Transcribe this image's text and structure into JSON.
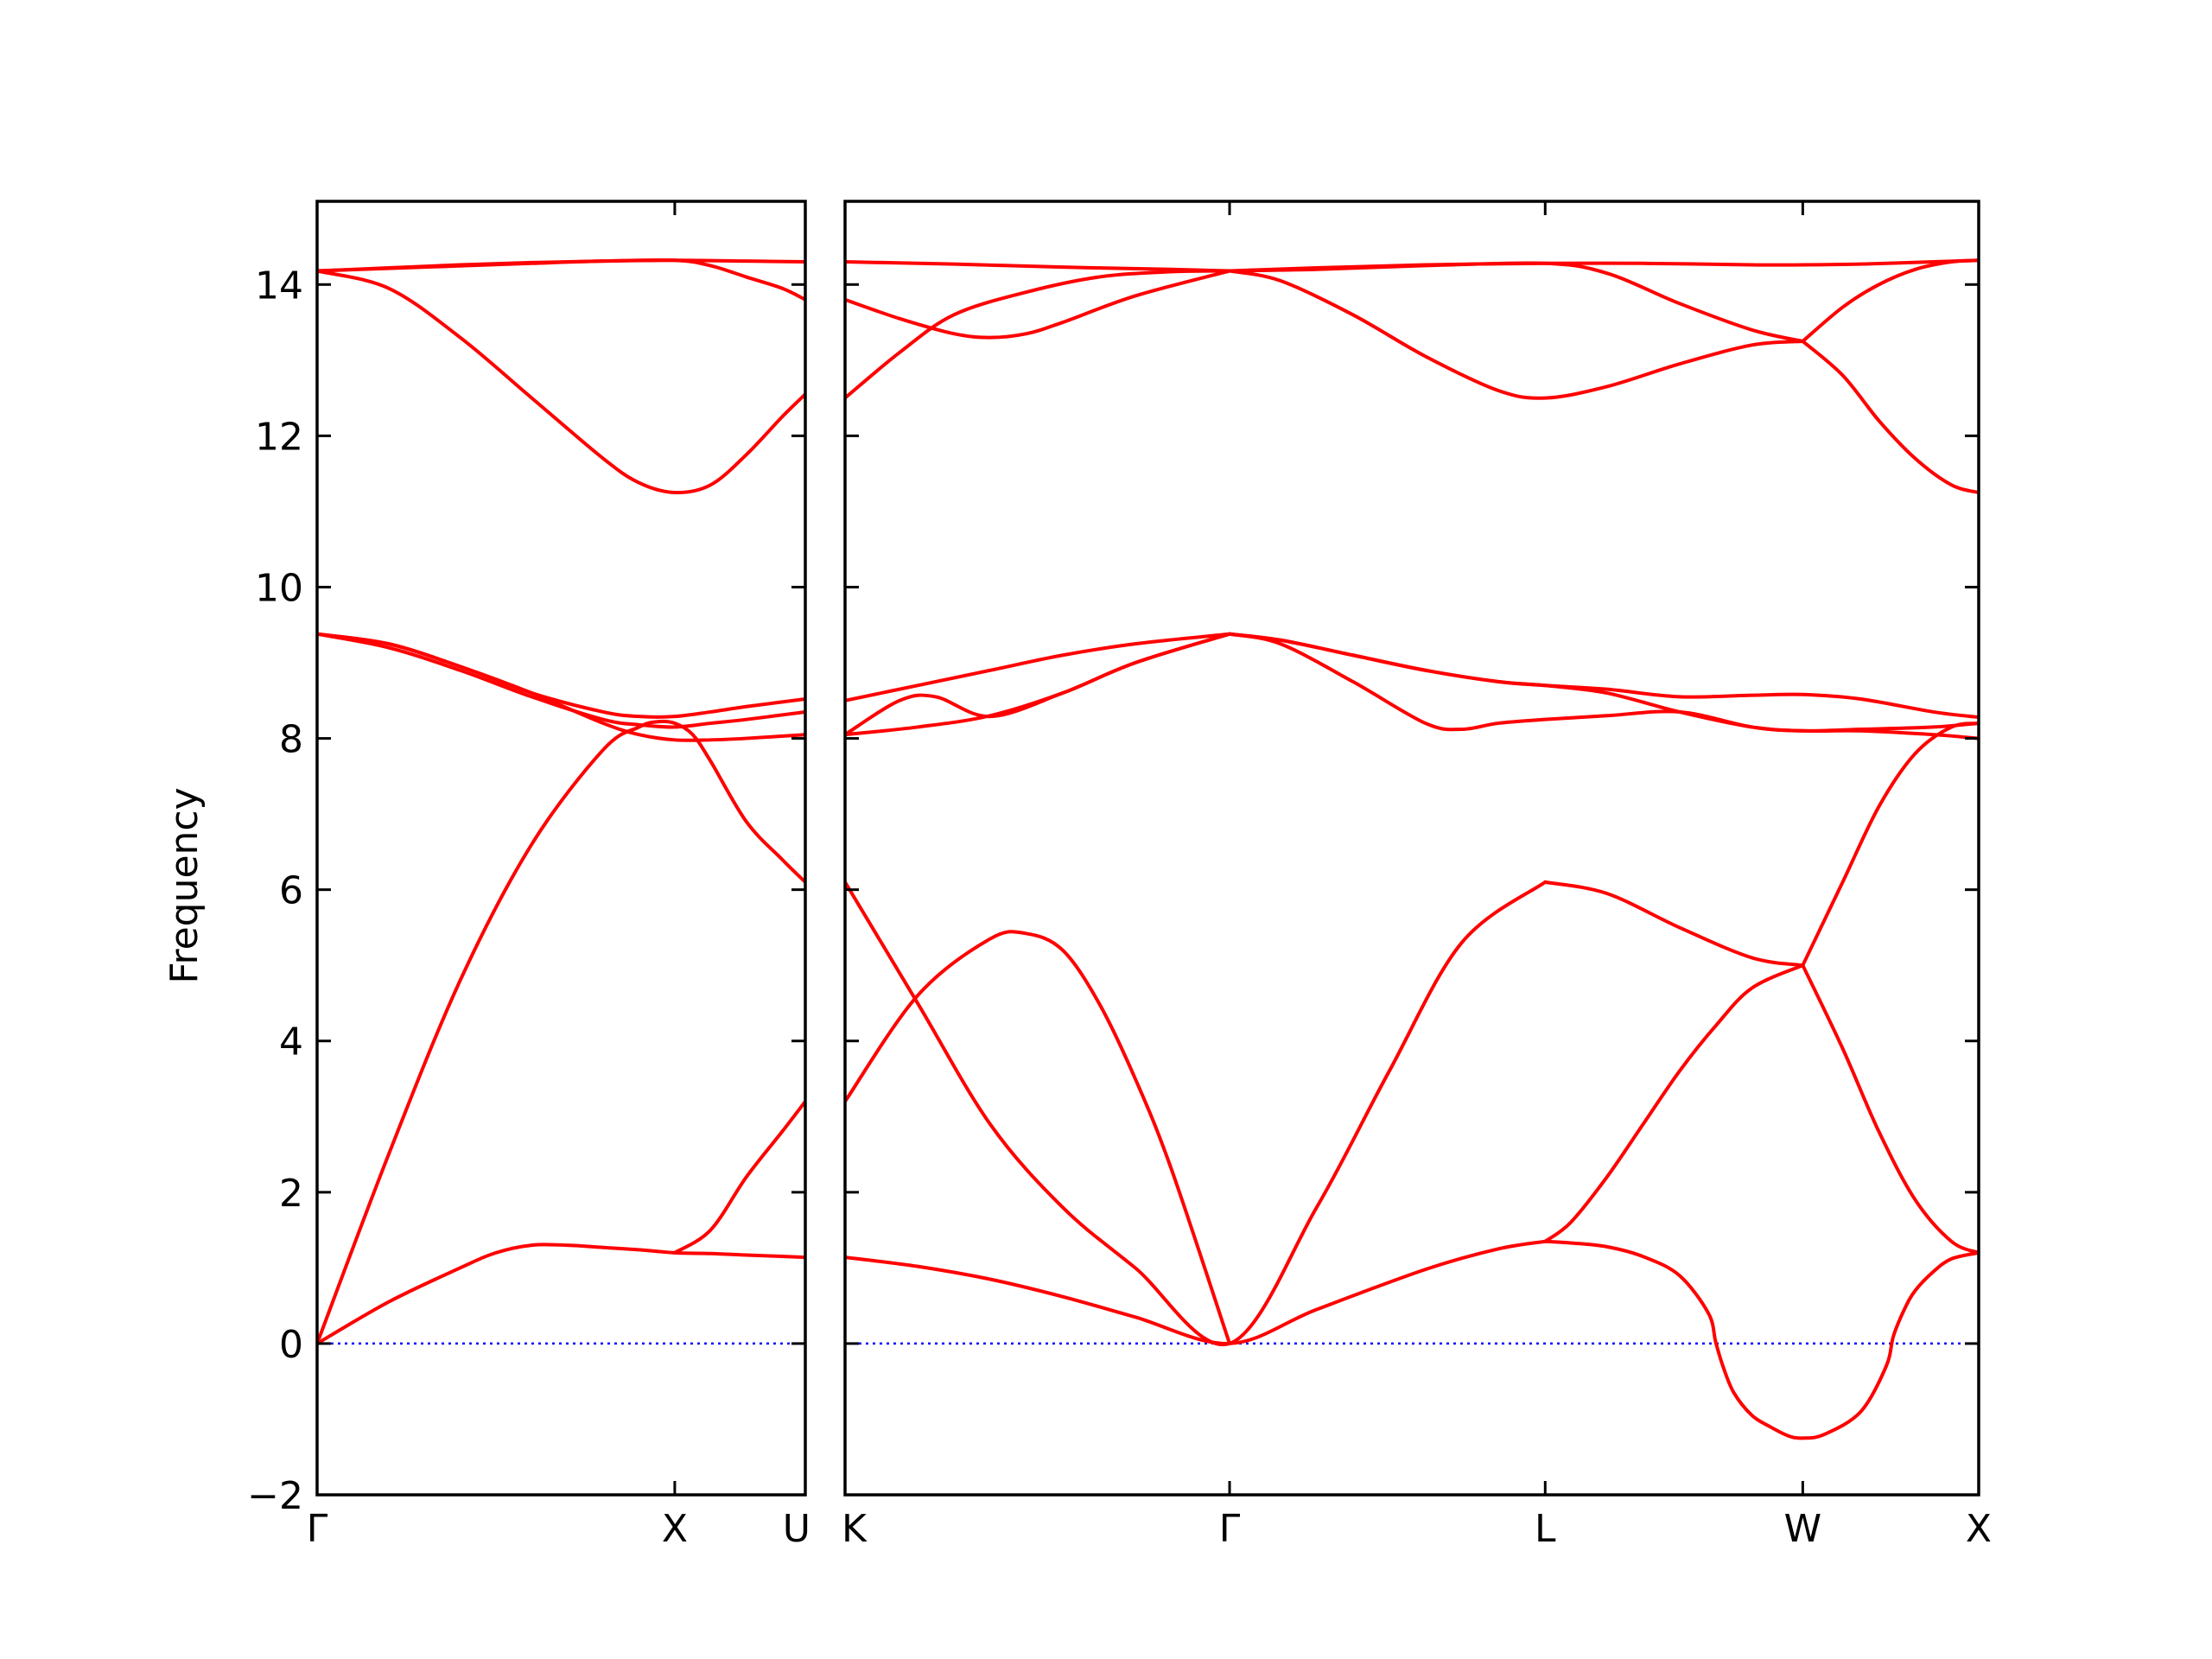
{
  "chart_data": {
    "type": "line",
    "title": "",
    "ylabel": "Frequency",
    "xlabel": "",
    "ylim": [
      -2,
      15.1
    ],
    "yticks": [
      -2,
      0,
      2,
      4,
      6,
      8,
      10,
      12,
      14
    ],
    "grid": false,
    "legend": "none",
    "colors": {
      "bands": "#ff0000",
      "zero_line": "#0000ff"
    },
    "panels": [
      {
        "x_range": [
          0,
          1.365
        ],
        "ticks": [
          {
            "x": 0,
            "label": "Γ"
          },
          {
            "x": 1.0,
            "label": "X"
          },
          {
            "x": 1.365,
            "label": "U"
          }
        ],
        "bands": [
          {
            "x": [
              0,
              0.2,
              0.4,
              0.5,
              0.6,
              0.7,
              0.8,
              0.9,
              1.0,
              1.1,
              1.2,
              1.365
            ],
            "y": [
              0,
              0.55,
              1.0,
              1.2,
              1.3,
              1.3,
              1.27,
              1.24,
              1.2,
              1.19,
              1.17,
              1.14
            ]
          },
          {
            "x": [
              0,
              0.2,
              0.4,
              0.6,
              0.8,
              0.9,
              0.95,
              1.0,
              1.05,
              1.1,
              1.2,
              1.3,
              1.365
            ],
            "y": [
              0,
              2.5,
              4.8,
              6.6,
              7.85,
              8.15,
              8.22,
              8.2,
              8.05,
              7.7,
              6.9,
              6.4,
              6.1
            ]
          },
          {
            "x": [
              1.0,
              1.1,
              1.2,
              1.3,
              1.365
            ],
            "y": [
              1.2,
              1.5,
              2.2,
              2.8,
              3.2
            ]
          },
          {
            "x": [
              0,
              0.2,
              0.4,
              0.6,
              0.8,
              0.9,
              1.0,
              1.1,
              1.2,
              1.365
            ],
            "y": [
              9.38,
              9.25,
              8.95,
              8.6,
              8.2,
              8.05,
              7.98,
              7.98,
              8.0,
              8.05
            ]
          },
          {
            "x": [
              0,
              0.2,
              0.4,
              0.6,
              0.8,
              0.9,
              1.0,
              1.1,
              1.2,
              1.365
            ],
            "y": [
              9.38,
              9.2,
              8.9,
              8.55,
              8.25,
              8.18,
              8.15,
              8.2,
              8.25,
              8.35
            ]
          },
          {
            "x": [
              0,
              0.2,
              0.4,
              0.6,
              0.8,
              0.9,
              1.0,
              1.1,
              1.2,
              1.365
            ],
            "y": [
              9.38,
              9.25,
              8.95,
              8.6,
              8.35,
              8.29,
              8.29,
              8.35,
              8.42,
              8.52
            ]
          },
          {
            "x": [
              0,
              0.2,
              0.4,
              0.6,
              0.8,
              0.9,
              1.0,
              1.1,
              1.2,
              1.3,
              1.365
            ],
            "y": [
              14.18,
              13.95,
              13.3,
              12.5,
              11.7,
              11.38,
              11.25,
              11.35,
              11.75,
              12.25,
              12.55
            ]
          },
          {
            "x": [
              0,
              0.2,
              0.4,
              0.6,
              0.8,
              1.0,
              1.1,
              1.2,
              1.3,
              1.365
            ],
            "y": [
              14.18,
              14.22,
              14.26,
              14.29,
              14.31,
              14.32,
              14.25,
              14.1,
              13.95,
              13.8
            ]
          },
          {
            "x": [
              0,
              0.3,
              0.6,
              0.8,
              1.0,
              1.2,
              1.365
            ],
            "y": [
              14.18,
              14.23,
              14.28,
              14.31,
              14.32,
              14.31,
              14.3
            ]
          }
        ]
      },
      {
        "x_range": [
          0,
          3.125
        ],
        "ticks": [
          {
            "x": 0,
            "label": "K"
          },
          {
            "x": 1.06,
            "label": "Γ"
          },
          {
            "x": 1.93,
            "label": "L"
          },
          {
            "x": 2.64,
            "label": "W"
          },
          {
            "x": 3.125,
            "label": "X"
          }
        ],
        "bands": [
          {
            "x": [
              0,
              0.2,
              0.4,
              0.6,
              0.8,
              1.06,
              1.3,
              1.6,
              1.8,
              1.93
            ],
            "y": [
              1.14,
              1.02,
              0.85,
              0.62,
              0.35,
              0,
              0.45,
              0.98,
              1.25,
              1.35
            ]
          },
          {
            "x": [
              1.93,
              2.0,
              2.1,
              2.2,
              2.3,
              2.38,
              2.4,
              2.42,
              2.45,
              2.5,
              2.55,
              2.6,
              2.64,
              2.7,
              2.8,
              2.87,
              2.89,
              2.92,
              2.95,
              3.0,
              3.05,
              3.125
            ],
            "y": [
              1.35,
              1.33,
              1.28,
              1.15,
              0.9,
              0.4,
              0.02,
              -0.3,
              -0.65,
              -0.95,
              -1.1,
              -1.22,
              -1.25,
              -1.2,
              -0.9,
              -0.3,
              0.1,
              0.45,
              0.7,
              0.95,
              1.12,
              1.2
            ]
          },
          {
            "x": [
              0,
              0.2,
              0.4,
              0.6,
              0.8,
              1.06,
              1.3,
              1.5,
              1.7,
              1.93
            ],
            "y": [
              6.1,
              4.5,
              2.9,
              1.8,
              1.0,
              0,
              1.8,
              3.6,
              5.3,
              6.1
            ]
          },
          {
            "x": [
              1.93,
              2.1,
              2.3,
              2.5,
              2.64
            ],
            "y": [
              6.1,
              5.95,
              5.5,
              5.1,
              5.0
            ]
          },
          {
            "x": [
              1.93,
              2.0,
              2.1,
              2.2,
              2.3,
              2.4,
              2.5,
              2.64
            ],
            "y": [
              1.35,
              1.6,
              2.2,
              2.9,
              3.6,
              4.2,
              4.7,
              5.0
            ]
          },
          {
            "x": [
              2.64,
              2.75,
              2.85,
              2.95,
              3.05,
              3.125
            ],
            "y": [
              5.0,
              6.1,
              7.1,
              7.8,
              8.15,
              8.2
            ]
          },
          {
            "x": [
              2.64,
              2.75,
              2.85,
              2.95,
              3.05,
              3.125
            ],
            "y": [
              5.0,
              3.9,
              2.8,
              1.9,
              1.35,
              1.2
            ]
          },
          {
            "x": [
              0,
              0.2,
              0.4,
              0.5,
              0.6,
              0.7,
              0.8,
              0.9,
              1.06
            ],
            "y": [
              3.2,
              4.6,
              5.35,
              5.42,
              5.2,
              4.5,
              3.5,
              2.3,
              0
            ]
          },
          {
            "x": [
              0,
              0.15,
              0.25,
              0.4,
              0.6,
              0.8,
              1.06
            ],
            "y": [
              8.05,
              8.5,
              8.55,
              8.29,
              8.6,
              9.0,
              9.38
            ]
          },
          {
            "x": [
              0,
              0.2,
              0.4,
              0.6,
              0.8,
              1.06
            ],
            "y": [
              8.05,
              8.15,
              8.3,
              8.6,
              9.0,
              9.38
            ]
          },
          {
            "x": [
              0,
              0.2,
              0.4,
              0.6,
              0.8,
              1.06
            ],
            "y": [
              8.5,
              8.7,
              8.9,
              9.1,
              9.25,
              9.38
            ]
          },
          {
            "x": [
              1.06,
              1.2,
              1.4,
              1.6,
              1.7,
              1.8,
              1.93,
              2.1,
              2.3,
              2.5,
              2.64,
              2.8,
              3.0,
              3.125
            ],
            "y": [
              9.38,
              9.25,
              8.75,
              8.2,
              8.12,
              8.2,
              8.25,
              8.3,
              8.35,
              8.15,
              8.1,
              8.1,
              8.05,
              8.0
            ]
          },
          {
            "x": [
              1.06,
              1.2,
              1.4,
              1.6,
              1.8,
              1.93,
              2.1,
              2.3,
              2.5,
              2.64,
              2.8,
              3.0,
              3.125
            ],
            "y": [
              9.38,
              9.3,
              9.1,
              8.9,
              8.75,
              8.7,
              8.6,
              8.35,
              8.15,
              8.1,
              8.12,
              8.15,
              8.2
            ]
          },
          {
            "x": [
              1.06,
              1.2,
              1.4,
              1.6,
              1.8,
              1.93,
              2.1,
              2.3,
              2.5,
              2.64,
              2.8,
              3.0,
              3.125
            ],
            "y": [
              9.38,
              9.3,
              9.1,
              8.9,
              8.75,
              8.7,
              8.65,
              8.55,
              8.57,
              8.58,
              8.52,
              8.35,
              8.28
            ]
          },
          {
            "x": [
              0,
              0.15,
              0.3,
              0.4,
              0.5,
              0.6,
              0.8,
              1.06
            ],
            "y": [
              13.8,
              13.55,
              13.35,
              13.3,
              13.35,
              13.5,
              13.85,
              14.18
            ]
          },
          {
            "x": [
              0,
              0.15,
              0.3,
              0.5,
              0.7,
              0.9,
              1.06
            ],
            "y": [
              12.5,
              13.1,
              13.6,
              13.9,
              14.1,
              14.17,
              14.18
            ]
          },
          {
            "x": [
              0,
              0.3,
              0.6,
              0.9,
              1.06
            ],
            "y": [
              14.3,
              14.27,
              14.23,
              14.2,
              14.18
            ]
          },
          {
            "x": [
              1.06,
              1.2,
              1.4,
              1.6,
              1.8,
              1.93,
              2.1,
              2.3,
              2.5,
              2.64
            ],
            "y": [
              14.18,
              14.05,
              13.6,
              13.05,
              12.6,
              12.5,
              12.65,
              12.95,
              13.2,
              13.25
            ]
          },
          {
            "x": [
              1.06,
              1.3,
              1.6,
              1.93,
              2.1,
              2.3,
              2.5,
              2.64
            ],
            "y": [
              14.18,
              14.2,
              14.25,
              14.28,
              14.15,
              13.75,
              13.4,
              13.25
            ]
          },
          {
            "x": [
              1.06,
              1.3,
              1.6,
              1.93,
              2.2,
              2.5,
              2.64,
              2.8,
              3.0,
              3.125
            ],
            "y": [
              14.18,
              14.22,
              14.26,
              14.28,
              14.28,
              14.26,
              14.26,
              14.27,
              14.3,
              14.32
            ]
          },
          {
            "x": [
              2.64,
              2.75,
              2.85,
              2.95,
              3.05,
              3.125
            ],
            "y": [
              13.25,
              13.7,
              14.0,
              14.2,
              14.3,
              14.32
            ]
          },
          {
            "x": [
              2.64,
              2.75,
              2.85,
              2.95,
              3.05,
              3.125
            ],
            "y": [
              13.25,
              12.8,
              12.2,
              11.7,
              11.35,
              11.25
            ]
          }
        ]
      }
    ]
  }
}
